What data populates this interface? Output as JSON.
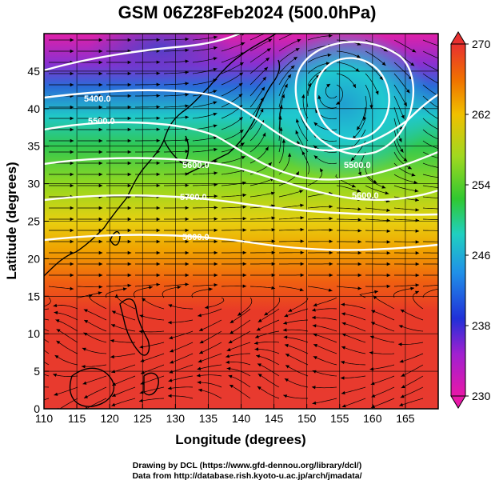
{
  "title": "GSM 06Z28Feb2024 (500.0hPa)",
  "xlabel": "Longitude (degrees)",
  "ylabel": "Latitude  (degrees)",
  "x_ticks": [
    "110",
    "115",
    "120",
    "125",
    "130",
    "135",
    "140",
    "145",
    "150",
    "155",
    "160",
    "165"
  ],
  "y_ticks": [
    "0",
    "5",
    "10",
    "15",
    "20",
    "25",
    "30",
    "35",
    "40",
    "45"
  ],
  "colorbar": {
    "ticks": [
      "230",
      "238",
      "246",
      "254",
      "262",
      "270"
    ],
    "min": 230,
    "max": 270
  },
  "contour_labels": [
    "5400.0",
    "5500.0",
    "5600.0",
    "5700.0",
    "5800.0",
    "5500.0",
    "5600.0"
  ],
  "credits": [
    "Drawing by DCL (https://www.gfd-dennou.org/library/dcl/)",
    "Data from http://database.rish.kyoto-u.ac.jp/arch/jmadata/"
  ],
  "chart_data": {
    "type": "heatmap",
    "field": "500 hPa temperature (K) with geopotential height contours and wind streamlines",
    "x_range": [
      110,
      170
    ],
    "y_range": [
      0,
      50
    ],
    "value_range": [
      230,
      270
    ],
    "low_center": {
      "lon": 154,
      "lat": 42.5
    },
    "contours": [
      5400,
      5500,
      5600,
      5700,
      5800
    ]
  },
  "colors": {
    "cbar_stops": [
      "#e8189c",
      "#a020c8",
      "#2030d0",
      "#20a0e8",
      "#20d0a0",
      "#40c820",
      "#a0d820",
      "#f0c000",
      "#f07000",
      "#e83030"
    ]
  }
}
